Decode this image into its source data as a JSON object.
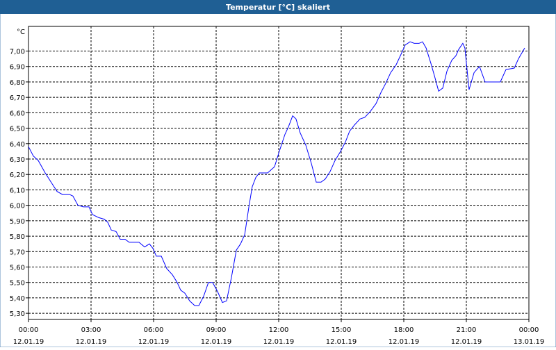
{
  "chart_data": {
    "type": "line",
    "title": "Temperatur [°C] skaliert",
    "y_unit": "°C",
    "xlim": [
      0,
      24
    ],
    "ylim": [
      5.26,
      7.16
    ],
    "grid": true,
    "xticks": [
      {
        "value": 0,
        "label": "00:00"
      },
      {
        "value": 3,
        "label": "03:00"
      },
      {
        "value": 6,
        "label": "06:00"
      },
      {
        "value": 9,
        "label": "09:00"
      },
      {
        "value": 12,
        "label": "12:00"
      },
      {
        "value": 15,
        "label": "15:00"
      },
      {
        "value": 18,
        "label": "18:00"
      },
      {
        "value": 21,
        "label": "21:00"
      },
      {
        "value": 24,
        "label": "00:00"
      }
    ],
    "xtick_dates": [
      "12.01.19",
      "12.01.19",
      "12.01.19",
      "12.01.19",
      "12.01.19",
      "12.01.19",
      "12.01.19",
      "12.01.19",
      "13.01.19"
    ],
    "yticks": [
      {
        "value": 5.3,
        "label": "5,30"
      },
      {
        "value": 5.4,
        "label": "5,40"
      },
      {
        "value": 5.5,
        "label": "5,50"
      },
      {
        "value": 5.6,
        "label": "5,60"
      },
      {
        "value": 5.7,
        "label": "5,70"
      },
      {
        "value": 5.8,
        "label": "5,80"
      },
      {
        "value": 5.9,
        "label": "5,90"
      },
      {
        "value": 6.0,
        "label": "6,00"
      },
      {
        "value": 6.1,
        "label": "6,10"
      },
      {
        "value": 6.2,
        "label": "6,20"
      },
      {
        "value": 6.3,
        "label": "6,30"
      },
      {
        "value": 6.4,
        "label": "6,40"
      },
      {
        "value": 6.5,
        "label": "6,50"
      },
      {
        "value": 6.6,
        "label": "6,60"
      },
      {
        "value": 6.7,
        "label": "6,70"
      },
      {
        "value": 6.8,
        "label": "6,80"
      },
      {
        "value": 6.9,
        "label": "6,90"
      },
      {
        "value": 7.0,
        "label": "7,00"
      }
    ],
    "color": "#0000ff",
    "x": [
      0,
      0.23,
      0.47,
      0.8,
      1.13,
      1.37,
      1.63,
      1.97,
      2.13,
      2.37,
      2.63,
      2.9,
      3.07,
      3.37,
      3.63,
      3.8,
      3.97,
      4.2,
      4.4,
      4.63,
      4.83,
      5.3,
      5.57,
      5.8,
      5.97,
      6.13,
      6.37,
      6.63,
      6.9,
      7.13,
      7.3,
      7.5,
      7.73,
      7.97,
      8.17,
      8.4,
      8.63,
      8.83,
      9.07,
      9.3,
      9.5,
      9.73,
      9.97,
      10.17,
      10.37,
      10.57,
      10.73,
      10.9,
      11.07,
      11.47,
      11.8,
      12.03,
      12.3,
      12.47,
      12.67,
      12.83,
      13.03,
      13.3,
      13.57,
      13.8,
      14.03,
      14.23,
      14.47,
      14.7,
      14.97,
      15.2,
      15.4,
      15.63,
      15.9,
      16.13,
      16.4,
      16.67,
      16.9,
      17.13,
      17.37,
      17.63,
      17.87,
      18.07,
      18.3,
      18.5,
      18.73,
      18.9,
      19.07,
      19.3,
      19.47,
      19.67,
      19.87,
      20.07,
      20.3,
      20.5,
      20.63,
      20.83,
      20.93,
      21.13,
      21.37,
      21.63,
      21.9,
      22.63,
      22.9,
      23.3,
      23.5,
      23.8
    ],
    "values": [
      6.38,
      6.32,
      6.29,
      6.21,
      6.14,
      6.09,
      6.07,
      6.07,
      6.06,
      6.0,
      5.99,
      5.99,
      5.94,
      5.92,
      5.91,
      5.89,
      5.84,
      5.83,
      5.78,
      5.78,
      5.76,
      5.76,
      5.73,
      5.75,
      5.72,
      5.67,
      5.67,
      5.59,
      5.55,
      5.5,
      5.45,
      5.43,
      5.38,
      5.35,
      5.35,
      5.41,
      5.5,
      5.5,
      5.44,
      5.37,
      5.38,
      5.53,
      5.71,
      5.75,
      5.81,
      5.99,
      6.12,
      6.18,
      6.21,
      6.21,
      6.25,
      6.35,
      6.46,
      6.51,
      6.58,
      6.56,
      6.47,
      6.39,
      6.27,
      6.15,
      6.15,
      6.17,
      6.22,
      6.29,
      6.35,
      6.41,
      6.48,
      6.52,
      6.56,
      6.57,
      6.61,
      6.66,
      6.73,
      6.79,
      6.86,
      6.91,
      6.98,
      7.04,
      7.06,
      7.05,
      7.05,
      7.06,
      7.02,
      6.92,
      6.84,
      6.74,
      6.76,
      6.87,
      6.94,
      6.97,
      7.01,
      7.05,
      7.02,
      6.75,
      6.86,
      6.9,
      6.8,
      6.8,
      6.88,
      6.89,
      6.95,
      7.02
    ]
  }
}
